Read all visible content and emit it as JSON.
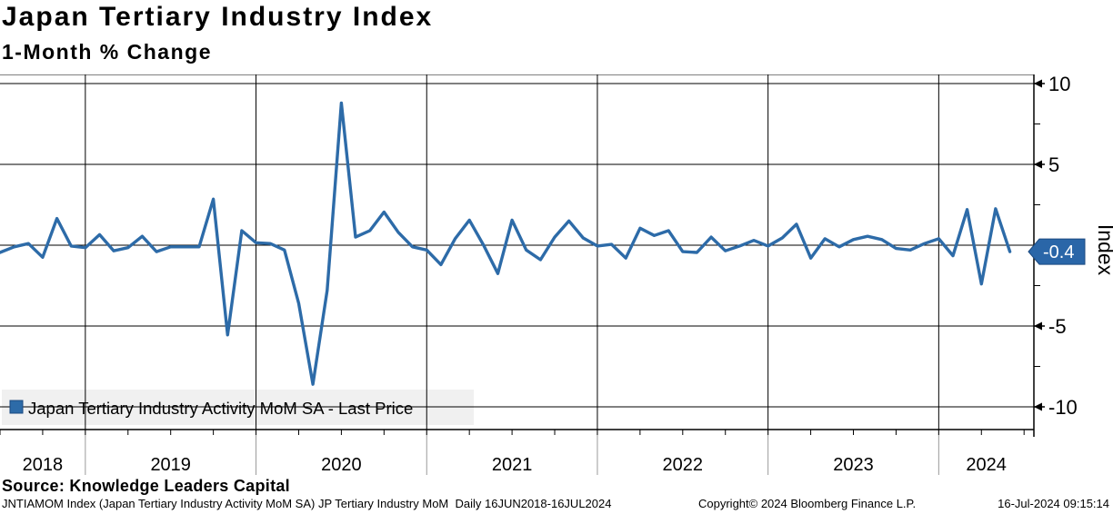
{
  "title": "Japan Tertiary Industry Index",
  "subtitle": "1-Month % Change",
  "legend": {
    "label": "Japan Tertiary Industry Activity MoM SA - Last Price",
    "swatch_color": "#2d6ba8"
  },
  "y_axis": {
    "title": "Index",
    "major_ticks": [
      10,
      5,
      0,
      -5,
      -10
    ],
    "major_tick_labels": [
      "10",
      "5",
      "-5",
      "-10"
    ],
    "minor_ticks": [
      7.5,
      2.5,
      -2.5,
      -7.5
    ],
    "last_price": -0.4,
    "last_price_label": "-0.4",
    "badge_color": "#2a66a8"
  },
  "x_axis": {
    "year_labels": [
      "2018",
      "2019",
      "2020",
      "2021",
      "2022",
      "2023",
      "2024"
    ]
  },
  "source_line": "Source: Knowledge Leaders Capital",
  "footer": {
    "left": "JNTIAMOM Index (Japan Tertiary Industry Activity MoM SA) JP Tertiary Industry MoM  Daily 16JUN2018-16JUL2024",
    "center": "Copyright© 2024 Bloomberg Finance L.P.",
    "right": "16-Jul-2024 09:15:14"
  },
  "chart_data": {
    "type": "line",
    "title": "Japan Tertiary Industry Index — 1-Month % Change",
    "ylabel": "Index",
    "ylim": [
      -11.5,
      10.7
    ],
    "grid": true,
    "legend_position": "bottom-left",
    "line_color": "#2d6ba8",
    "x": [
      "Jul-18",
      "Aug-18",
      "Sep-18",
      "Oct-18",
      "Nov-18",
      "Dec-18",
      "Jan-19",
      "Feb-19",
      "Mar-19",
      "Apr-19",
      "May-19",
      "Jun-19",
      "Jul-19",
      "Aug-19",
      "Sep-19",
      "Oct-19",
      "Nov-19",
      "Dec-19",
      "Jan-20",
      "Feb-20",
      "Mar-20",
      "Apr-20",
      "May-20",
      "Jun-20",
      "Jul-20",
      "Aug-20",
      "Sep-20",
      "Oct-20",
      "Nov-20",
      "Dec-20",
      "Jan-21",
      "Feb-21",
      "Mar-21",
      "Apr-21",
      "May-21",
      "Jun-21",
      "Jul-21",
      "Aug-21",
      "Sep-21",
      "Oct-21",
      "Nov-21",
      "Dec-21",
      "Jan-22",
      "Feb-22",
      "Mar-22",
      "Apr-22",
      "May-22",
      "Jun-22",
      "Jul-22",
      "Aug-22",
      "Sep-22",
      "Oct-22",
      "Nov-22",
      "Dec-22",
      "Jan-23",
      "Feb-23",
      "Mar-23",
      "Apr-23",
      "May-23",
      "Jun-23",
      "Jul-23",
      "Aug-23",
      "Sep-23",
      "Oct-23",
      "Nov-23",
      "Dec-23",
      "Jan-24",
      "Feb-24",
      "Mar-24",
      "Apr-24",
      "May-24",
      "Jun-24"
    ],
    "series": [
      {
        "name": "Japan Tertiary Industry Activity MoM SA - Last Price",
        "values": [
          -0.45,
          -0.1,
          0.1,
          -0.75,
          1.65,
          -0.05,
          -0.15,
          0.65,
          -0.35,
          -0.15,
          0.55,
          -0.4,
          -0.1,
          -0.1,
          -0.1,
          2.85,
          -5.55,
          0.9,
          0.15,
          0.1,
          -0.3,
          -3.6,
          -8.6,
          -2.8,
          8.8,
          0.5,
          0.9,
          2.05,
          0.8,
          -0.1,
          -0.3,
          -1.2,
          0.4,
          1.55,
          0.0,
          -1.75,
          1.55,
          -0.3,
          -0.9,
          0.5,
          1.5,
          0.45,
          -0.05,
          0.05,
          -0.8,
          1.05,
          0.6,
          0.9,
          -0.4,
          -0.45,
          0.5,
          -0.35,
          -0.05,
          0.3,
          -0.05,
          0.45,
          1.3,
          -0.8,
          0.4,
          -0.1,
          0.35,
          0.55,
          0.35,
          -0.2,
          -0.3,
          0.1,
          0.4,
          -0.65,
          2.2,
          -2.4,
          2.25,
          -0.4
        ]
      }
    ]
  }
}
